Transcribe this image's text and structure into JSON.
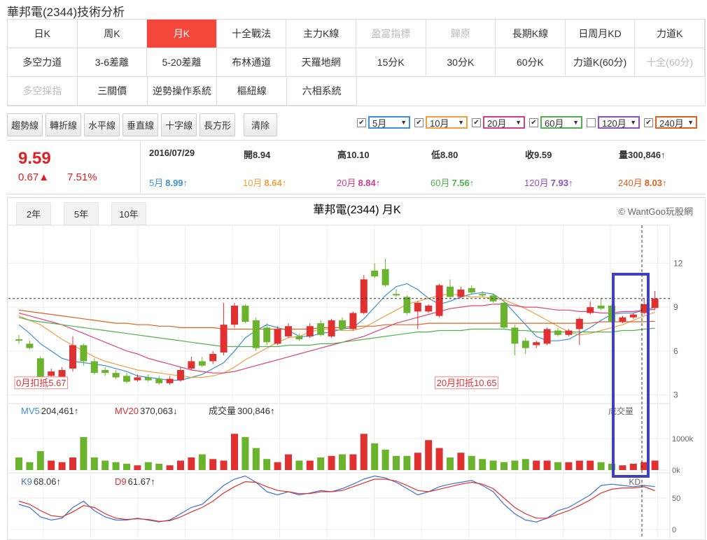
{
  "page": {
    "title": "華邦電(2344)技術分析"
  },
  "menu": [
    [
      {
        "label": "日K",
        "state": "normal"
      },
      {
        "label": "周K",
        "state": "normal"
      },
      {
        "label": "月K",
        "state": "active"
      },
      {
        "label": "十全戰法",
        "state": "normal"
      },
      {
        "label": "主力K線",
        "state": "normal"
      },
      {
        "label": "盈富指標",
        "state": "disabled"
      },
      {
        "label": "歸原",
        "state": "disabled"
      },
      {
        "label": "長期K線",
        "state": "normal"
      },
      {
        "label": "日周月KD",
        "state": "normal"
      },
      {
        "label": "力道K",
        "state": "normal"
      }
    ],
    [
      {
        "label": "多空力道",
        "state": "normal"
      },
      {
        "label": "3-6差離",
        "state": "normal"
      },
      {
        "label": "5-20差離",
        "state": "normal"
      },
      {
        "label": "布林通道",
        "state": "normal"
      },
      {
        "label": "天羅地網",
        "state": "normal"
      },
      {
        "label": "15分K",
        "state": "normal"
      },
      {
        "label": "30分K",
        "state": "normal"
      },
      {
        "label": "60分K",
        "state": "normal"
      },
      {
        "label": "力道K(60分)",
        "state": "normal"
      },
      {
        "label": "十全(60分)",
        "state": "disabled"
      }
    ],
    [
      {
        "label": "多空採指",
        "state": "disabled"
      },
      {
        "label": "三關價",
        "state": "normal"
      },
      {
        "label": "逆勢操作系統",
        "state": "normal"
      },
      {
        "label": "樞紐線",
        "state": "normal"
      },
      {
        "label": "六相系統",
        "state": "normal"
      }
    ]
  ],
  "tools": [
    "趨勢線",
    "轉折線",
    "水平線",
    "垂直線",
    "十字線",
    "長方形",
    "清除"
  ],
  "ma_selects": [
    {
      "label": "5月",
      "color": "#3d8fd6",
      "checked": true
    },
    {
      "label": "10月",
      "color": "#f0a040",
      "checked": true
    },
    {
      "label": "20月",
      "color": "#d0408a",
      "checked": true
    },
    {
      "label": "60月",
      "color": "#50b050",
      "checked": true
    },
    {
      "label": "120月",
      "color": "#9050c0",
      "checked": false
    },
    {
      "label": "240月",
      "color": "#e06020",
      "checked": true
    }
  ],
  "quote": {
    "price": "9.59",
    "change": "0.67▲",
    "percent": "7.51%",
    "date": "2016/07/29",
    "fields": [
      {
        "label": "開",
        "value": "8.94"
      },
      {
        "label": "高",
        "value": "10.10"
      },
      {
        "label": "低",
        "value": "8.80"
      },
      {
        "label": "收",
        "value": "9.59"
      },
      {
        "label": "量",
        "value": "300,846↑"
      }
    ],
    "mas": [
      {
        "label": "5月",
        "value": "8.99↑",
        "color": "#3d8fd6"
      },
      {
        "label": "10月",
        "value": "8.64↑",
        "color": "#f0a040"
      },
      {
        "label": "20月",
        "value": "8.84↑",
        "color": "#d0408a"
      },
      {
        "label": "60月",
        "value": "7.56↑",
        "color": "#50b050"
      },
      {
        "label": "120月",
        "value": "7.93↑",
        "color": "#9050c0"
      },
      {
        "label": "240月",
        "value": "8.03↑",
        "color": "#e06020"
      }
    ]
  },
  "chart": {
    "type": "candlestick",
    "title": "華邦電(2344) 月K",
    "credit": "© WantGoo玩股網",
    "ranges": [
      "2年",
      "5年",
      "10年"
    ],
    "ylim": [
      2.5,
      14.6
    ],
    "yticks": [
      3,
      6,
      9,
      12
    ],
    "annotations": [
      {
        "text": "0月扣抵5.67",
        "index": 0,
        "value": 3.8
      },
      {
        "text": "20月扣抵10.65",
        "index": 39,
        "value": 3.8
      }
    ],
    "candles": [
      [
        6.8,
        7.1,
        6.5,
        6.7
      ],
      [
        6.5,
        6.7,
        6.1,
        6.2
      ],
      [
        5.5,
        5.6,
        3.8,
        4.0
      ],
      [
        4.3,
        4.8,
        4.1,
        4.6
      ],
      [
        4.2,
        4.9,
        4.0,
        4.7
      ],
      [
        4.8,
        7.0,
        4.6,
        6.4
      ],
      [
        6.4,
        6.5,
        5.0,
        5.3
      ],
      [
        5.3,
        5.5,
        4.4,
        4.5
      ],
      [
        4.7,
        4.9,
        4.3,
        4.5
      ],
      [
        4.5,
        4.7,
        4.1,
        4.2
      ],
      [
        4.3,
        4.5,
        3.8,
        3.9
      ],
      [
        4.0,
        4.4,
        3.9,
        4.2
      ],
      [
        4.2,
        4.4,
        3.9,
        4.0
      ],
      [
        4.1,
        4.3,
        3.7,
        3.8
      ],
      [
        3.8,
        4.3,
        3.7,
        4.1
      ],
      [
        4.0,
        4.9,
        3.9,
        4.7
      ],
      [
        4.8,
        5.6,
        4.7,
        5.3
      ],
      [
        5.3,
        5.6,
        4.9,
        5.0
      ],
      [
        5.3,
        6.0,
        5.1,
        5.8
      ],
      [
        5.9,
        9.3,
        5.7,
        7.8
      ],
      [
        7.8,
        9.3,
        7.6,
        9.1
      ],
      [
        9.1,
        9.2,
        7.9,
        8.0
      ],
      [
        8.1,
        8.3,
        6.0,
        6.2
      ],
      [
        7.6,
        7.9,
        6.4,
        6.6
      ],
      [
        6.5,
        7.7,
        6.4,
        7.5
      ],
      [
        7.0,
        7.9,
        6.9,
        7.7
      ],
      [
        7.0,
        7.2,
        6.7,
        6.8
      ],
      [
        7.0,
        7.9,
        6.9,
        7.7
      ],
      [
        7.9,
        8.1,
        7.0,
        7.1
      ],
      [
        7.0,
        8.2,
        6.9,
        8.1
      ],
      [
        8.1,
        8.3,
        7.4,
        7.5
      ],
      [
        7.5,
        8.7,
        7.4,
        8.6
      ],
      [
        8.6,
        11.2,
        8.5,
        10.9
      ],
      [
        11.5,
        12.0,
        11.0,
        11.1
      ],
      [
        11.6,
        12.3,
        10.4,
        10.5
      ],
      [
        9.9,
        10.2,
        9.7,
        9.8
      ],
      [
        9.7,
        9.8,
        8.5,
        8.6
      ],
      [
        8.7,
        9.4,
        7.5,
        9.3
      ],
      [
        8.7,
        9.2,
        8.6,
        9.1
      ],
      [
        8.4,
        10.6,
        8.3,
        10.5
      ],
      [
        10.4,
        10.9,
        9.6,
        9.7
      ],
      [
        9.7,
        10.4,
        9.6,
        10.2
      ],
      [
        10.3,
        10.5,
        9.9,
        10.0
      ],
      [
        9.9,
        10.1,
        9.7,
        9.8
      ],
      [
        9.8,
        9.9,
        9.3,
        9.4
      ],
      [
        9.3,
        9.4,
        7.5,
        7.6
      ],
      [
        7.6,
        7.8,
        5.7,
        6.5
      ],
      [
        6.7,
        6.9,
        5.8,
        6.2
      ],
      [
        6.4,
        6.7,
        6.2,
        6.6
      ],
      [
        6.5,
        7.6,
        6.4,
        7.5
      ],
      [
        7.4,
        7.6,
        7.0,
        7.1
      ],
      [
        7.1,
        7.5,
        7.0,
        7.4
      ],
      [
        7.5,
        8.3,
        6.4,
        8.2
      ],
      [
        8.6,
        9.4,
        8.5,
        9.0
      ],
      [
        9.1,
        9.6,
        8.8,
        8.9
      ],
      [
        9.1,
        9.2,
        7.9,
        8.0
      ],
      [
        8.0,
        8.4,
        7.9,
        8.3
      ],
      [
        8.3,
        8.6,
        8.2,
        8.5
      ],
      [
        8.6,
        9.6,
        8.5,
        9.2
      ],
      [
        8.94,
        10.1,
        8.8,
        9.59
      ]
    ],
    "ma": [
      {
        "name": "5月",
        "color": "#3d8fd6",
        "values": [
          7.8,
          7.2,
          6.5,
          6.0,
          5.5,
          5.3,
          5.2,
          5.1,
          5.0,
          4.8,
          4.6,
          4.3,
          4.2,
          4.1,
          4.0,
          4.0,
          4.2,
          4.4,
          4.8,
          5.2,
          6.0,
          6.9,
          7.4,
          7.8,
          7.6,
          7.4,
          7.0,
          7.0,
          7.2,
          7.3,
          7.5,
          7.6,
          8.2,
          9.0,
          9.8,
          10.4,
          10.6,
          10.2,
          9.6,
          9.2,
          9.4,
          9.7,
          9.9,
          10.0,
          9.9,
          9.4,
          8.6,
          7.8,
          7.0,
          6.7,
          6.7,
          6.8,
          7.2,
          7.6,
          8.1,
          8.5,
          8.6,
          8.6,
          8.8,
          8.99
        ]
      },
      {
        "name": "10月",
        "color": "#f0a040",
        "values": [
          8.4,
          8.1,
          7.8,
          7.3,
          6.8,
          6.4,
          6.0,
          5.6,
          5.3,
          5.1,
          4.9,
          4.7,
          4.6,
          4.5,
          4.4,
          4.3,
          4.2,
          4.2,
          4.3,
          4.5,
          4.9,
          5.4,
          5.8,
          6.2,
          6.6,
          6.9,
          7.0,
          7.3,
          7.5,
          7.5,
          7.4,
          7.4,
          7.6,
          8.0,
          8.4,
          8.8,
          9.2,
          9.4,
          9.6,
          9.8,
          9.9,
          9.8,
          9.7,
          9.7,
          9.6,
          9.5,
          9.2,
          8.9,
          8.5,
          8.1,
          7.7,
          7.3,
          7.1,
          7.2,
          7.4,
          7.6,
          7.8,
          8.1,
          8.4,
          8.64
        ]
      },
      {
        "name": "20月",
        "color": "#e0407a",
        "values": [
          8.6,
          8.4,
          8.2,
          8.0,
          7.8,
          7.5,
          7.2,
          6.9,
          6.6,
          6.3,
          6.0,
          5.8,
          5.5,
          5.3,
          5.1,
          4.9,
          4.7,
          4.6,
          4.5,
          4.5,
          4.6,
          4.8,
          5.0,
          5.2,
          5.4,
          5.6,
          5.8,
          6.0,
          6.2,
          6.4,
          6.6,
          6.8,
          7.0,
          7.3,
          7.6,
          7.9,
          8.1,
          8.3,
          8.5,
          8.7,
          8.9,
          9.0,
          9.1,
          9.1,
          9.2,
          9.2,
          9.1,
          9.0,
          9.0,
          8.9,
          8.8,
          8.8,
          8.7,
          8.7,
          8.6,
          8.6,
          8.7,
          8.7,
          8.8,
          8.84
        ]
      },
      {
        "name": "60月",
        "color": "#50b050",
        "values": [
          8.3,
          8.1,
          8.0,
          7.9,
          7.8,
          7.7,
          7.6,
          7.5,
          7.4,
          7.3,
          7.2,
          7.1,
          7.0,
          6.9,
          6.8,
          6.7,
          6.6,
          6.5,
          6.4,
          6.3,
          6.3,
          6.3,
          6.3,
          6.3,
          6.3,
          6.4,
          6.4,
          6.4,
          6.5,
          6.5,
          6.6,
          6.7,
          6.8,
          6.9,
          7.0,
          7.1,
          7.2,
          7.3,
          7.3,
          7.4,
          7.4,
          7.4,
          7.5,
          7.5,
          7.5,
          7.5,
          7.4,
          7.4,
          7.3,
          7.3,
          7.3,
          7.3,
          7.3,
          7.3,
          7.3,
          7.3,
          7.4,
          7.4,
          7.5,
          7.56
        ]
      },
      {
        "name": "240月",
        "color": "#e06020",
        "values": [
          8.8,
          8.7,
          8.6,
          8.5,
          8.4,
          8.3,
          8.2,
          8.1,
          8.0,
          7.9,
          7.9,
          7.8,
          7.8,
          7.7,
          7.7,
          7.6,
          7.6,
          7.6,
          7.6,
          7.5,
          7.5,
          7.5,
          7.5,
          7.5,
          7.5,
          7.5,
          7.5,
          7.5,
          7.6,
          7.6,
          7.6,
          7.7,
          7.7,
          7.7,
          7.8,
          7.8,
          7.8,
          7.8,
          7.9,
          7.9,
          7.9,
          7.9,
          7.9,
          7.9,
          7.9,
          7.9,
          7.9,
          7.9,
          7.9,
          7.9,
          7.9,
          7.9,
          7.9,
          7.9,
          8.0,
          8.0,
          8.0,
          8.0,
          8.0,
          8.03
        ]
      }
    ],
    "volume": {
      "title": "成交量",
      "legend": [
        {
          "text": "MV5",
          "value": "204,461↑",
          "color": "#3d8fd6"
        },
        {
          "text": "MV20",
          "value": "370,063↓",
          "color": "#e03030"
        },
        {
          "text": "成交量",
          "value": "300,846↑",
          "color": "#333"
        }
      ],
      "ylim": [
        0,
        1600
      ],
      "yticks": [
        {
          "value": 1000,
          "label": "1000k"
        },
        {
          "value": 0,
          "label": "0k"
        }
      ],
      "values": [
        400,
        250,
        600,
        300,
        250,
        400,
        1050,
        400,
        300,
        250,
        200,
        150,
        250,
        200,
        150,
        300,
        400,
        500,
        350,
        300,
        1150,
        1050,
        700,
        350,
        250,
        500,
        300,
        300,
        400,
        450,
        500,
        500,
        1150,
        850,
        650,
        450,
        450,
        550,
        950,
        700,
        400,
        550,
        450,
        350,
        300,
        250,
        300,
        350,
        300,
        300,
        250,
        250,
        300,
        300,
        250,
        200,
        150,
        200,
        250,
        301
      ]
    },
    "kd": {
      "title": "KD",
      "ylim": [
        0,
        100
      ],
      "yticks": [
        50,
        0
      ],
      "series": [
        {
          "name": "K9",
          "label": "68.06↑",
          "color": "#3d6fd6",
          "values": [
            40,
            35,
            20,
            15,
            18,
            35,
            45,
            30,
            20,
            15,
            15,
            18,
            15,
            12,
            15,
            25,
            35,
            40,
            55,
            70,
            80,
            85,
            75,
            60,
            55,
            60,
            55,
            58,
            62,
            60,
            65,
            72,
            80,
            85,
            82,
            75,
            65,
            55,
            60,
            68,
            72,
            75,
            78,
            70,
            60,
            40,
            25,
            15,
            12,
            18,
            30,
            35,
            45,
            55,
            70,
            72,
            70,
            68,
            70,
            68.06
          ]
        },
        {
          "name": "D9",
          "label": "61.67↑",
          "color": "#e03030",
          "values": [
            45,
            40,
            30,
            22,
            20,
            28,
            38,
            35,
            25,
            18,
            16,
            17,
            16,
            13,
            14,
            20,
            28,
            35,
            45,
            58,
            68,
            76,
            75,
            68,
            62,
            60,
            57,
            57,
            60,
            60,
            62,
            68,
            74,
            80,
            80,
            77,
            70,
            62,
            60,
            64,
            68,
            72,
            75,
            72,
            65,
            50,
            35,
            25,
            18,
            18,
            24,
            30,
            38,
            47,
            58,
            64,
            66,
            66,
            68,
            61.67
          ]
        }
      ]
    }
  }
}
